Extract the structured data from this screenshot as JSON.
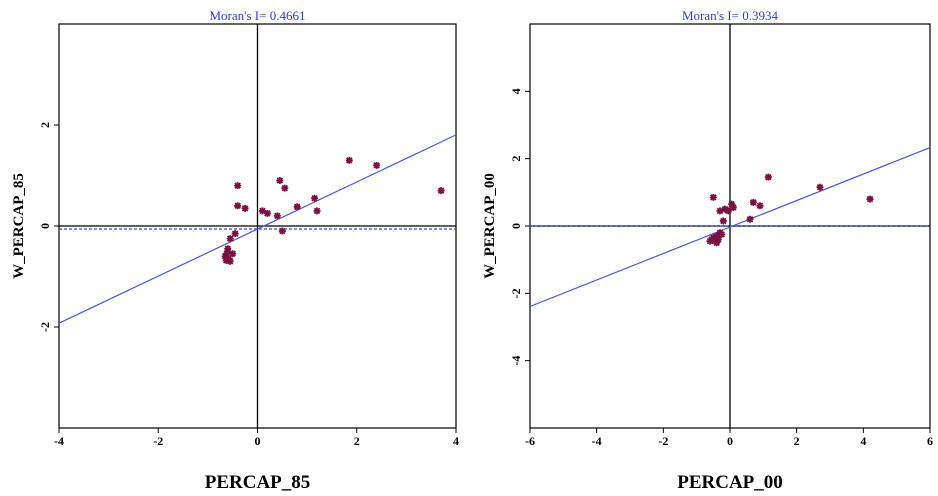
{
  "chart_data": [
    {
      "type": "scatter",
      "title": "Moran's I= 0.4661",
      "xlabel": "PERCAP_85",
      "ylabel": "W_PERCAP_85",
      "xlim": [
        -4,
        4
      ],
      "ylim": [
        -4,
        4
      ],
      "xticks": [
        "-4",
        "-2",
        "0",
        "2",
        "4"
      ],
      "yticks": [
        "-2",
        "0",
        "2"
      ],
      "ytick_values": [
        -2,
        0,
        2
      ],
      "grid": false,
      "marker_color": "#7a1040",
      "line_color": "#4b55e6",
      "regression": {
        "slope": 0.4661,
        "intercept": -0.06
      },
      "hline_solid": 0,
      "hline_dashed": -0.06,
      "vline": 0,
      "points": [
        {
          "x": -0.4,
          "y": 0.8
        },
        {
          "x": -0.4,
          "y": 0.4
        },
        {
          "x": -0.25,
          "y": 0.35
        },
        {
          "x": 0.1,
          "y": 0.3
        },
        {
          "x": 0.2,
          "y": 0.25
        },
        {
          "x": 0.45,
          "y": 0.9
        },
        {
          "x": 0.55,
          "y": 0.75
        },
        {
          "x": 0.4,
          "y": 0.2
        },
        {
          "x": 0.8,
          "y": 0.38
        },
        {
          "x": 1.15,
          "y": 0.55
        },
        {
          "x": 1.2,
          "y": 0.3
        },
        {
          "x": 1.85,
          "y": 1.3
        },
        {
          "x": 2.4,
          "y": 1.2
        },
        {
          "x": 3.7,
          "y": 0.7
        },
        {
          "x": 0.5,
          "y": -0.1
        },
        {
          "x": -0.45,
          "y": -0.15
        },
        {
          "x": -0.55,
          "y": -0.25
        },
        {
          "x": -0.5,
          "y": -0.55
        },
        {
          "x": -0.6,
          "y": -0.45
        },
        {
          "x": -0.62,
          "y": -0.55
        },
        {
          "x": -0.65,
          "y": -0.6
        },
        {
          "x": -0.58,
          "y": -0.65
        },
        {
          "x": -0.55,
          "y": -0.7
        },
        {
          "x": -0.63,
          "y": -0.68
        },
        {
          "x": -0.6,
          "y": -0.5
        }
      ]
    },
    {
      "type": "scatter",
      "title": "Moran's I= 0.3934",
      "xlabel": "PERCAP_00",
      "ylabel": "W_PERCAP_00",
      "xlim": [
        -6,
        6
      ],
      "ylim": [
        -6,
        6
      ],
      "xticks": [
        "-6",
        "-4",
        "-2",
        "0",
        "2",
        "4",
        "6"
      ],
      "yticks": [
        "4",
        "2",
        "0",
        "-2",
        "-4"
      ],
      "ytick_values": [
        4,
        2,
        0,
        -2,
        -4
      ],
      "grid": false,
      "marker_color": "#7a1040",
      "line_color": "#4b55e6",
      "regression": {
        "slope": 0.3934,
        "intercept": -0.03
      },
      "hline_solid": 0,
      "hline_dashed": 0,
      "vline": 0,
      "points": [
        {
          "x": -0.5,
          "y": 0.85
        },
        {
          "x": -0.3,
          "y": 0.45
        },
        {
          "x": -0.15,
          "y": 0.5
        },
        {
          "x": -0.05,
          "y": 0.45
        },
        {
          "x": 0.1,
          "y": 0.55
        },
        {
          "x": 0.05,
          "y": 0.65
        },
        {
          "x": 0.6,
          "y": 0.2
        },
        {
          "x": 0.7,
          "y": 0.7
        },
        {
          "x": 0.9,
          "y": 0.6
        },
        {
          "x": 1.15,
          "y": 1.45
        },
        {
          "x": 2.7,
          "y": 1.15
        },
        {
          "x": 4.2,
          "y": 0.8
        },
        {
          "x": -0.2,
          "y": 0.15
        },
        {
          "x": -0.3,
          "y": -0.2
        },
        {
          "x": -0.4,
          "y": -0.3
        },
        {
          "x": -0.5,
          "y": -0.35
        },
        {
          "x": -0.45,
          "y": -0.45
        },
        {
          "x": -0.55,
          "y": -0.4
        },
        {
          "x": -0.4,
          "y": -0.5
        },
        {
          "x": -0.6,
          "y": -0.45
        },
        {
          "x": -0.35,
          "y": -0.4
        },
        {
          "x": -0.25,
          "y": -0.25
        }
      ]
    }
  ]
}
